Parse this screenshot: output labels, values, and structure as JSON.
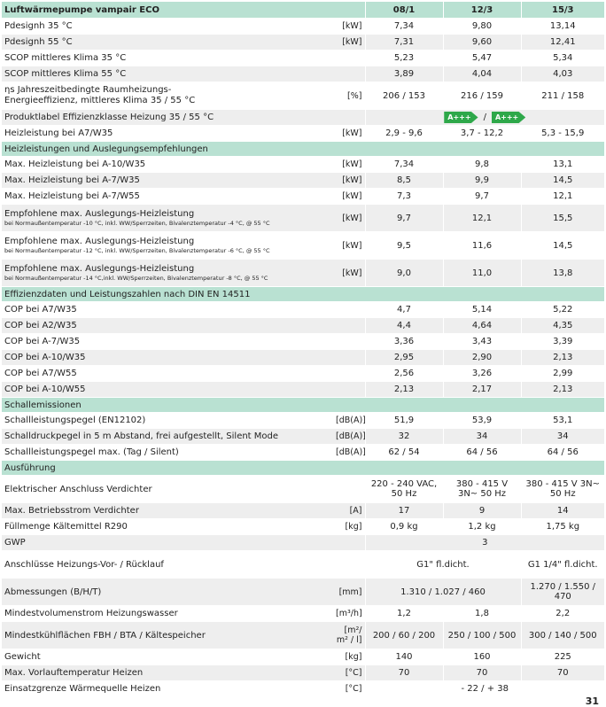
{
  "header": {
    "title": "Luftwärmepumpe vampair ECO",
    "columns": [
      "08/1",
      "12/3",
      "15/3"
    ]
  },
  "sections": [
    {
      "rows": [
        {
          "label": "Pdesignh 35 °C",
          "unit": "[kW]",
          "cells": [
            "7,34",
            "9,80",
            "13,14"
          ]
        },
        {
          "label": "Pdesignh 55 °C",
          "unit": "[kW]",
          "cells": [
            "7,31",
            "9,60",
            "12,41"
          ]
        },
        {
          "label": "SCOP mittleres Klima 35 °C",
          "cells": [
            "5,23",
            "5,47",
            "5,34"
          ]
        },
        {
          "label": "SCOP mittleres Klima 55 °C",
          "cells": [
            "3,89",
            "4,04",
            "4,03"
          ]
        },
        {
          "label": "ηs Jahreszeitbedingte Raumheizungs-",
          "label2": "Energieeffizienz, mittleres Klima 35 / 55 °C",
          "unit": "[%]",
          "cells": [
            "206 / 153",
            "216 / 159",
            "211 / 158"
          ]
        },
        {
          "label": "Produktlabel Effizienzklasse Heizung 35 / 55 °C",
          "badges": [
            "A+++",
            "A+++"
          ],
          "badge_separator": "/"
        },
        {
          "label": "Heizleistung bei A7/W35",
          "unit": "[kW]",
          "cells": [
            "2,9 - 9,6",
            "3,7 - 12,2",
            "5,3 - 15,9"
          ]
        }
      ]
    },
    {
      "title": "Heizleistungen und Auslegungsempfehlungen",
      "rows": [
        {
          "label": "Max. Heizleistung bei A-10/W35",
          "unit": "[kW]",
          "cells": [
            "7,34",
            "9,8",
            "13,1"
          ]
        },
        {
          "label": "Max. Heizleistung bei A-7/W35",
          "unit": "[kW]",
          "cells": [
            "8,5",
            "9,9",
            "14,5"
          ]
        },
        {
          "label": "Max. Heizleistung bei A-7/W55",
          "unit": "[kW]",
          "cells": [
            "7,3",
            "9,7",
            "12,1"
          ]
        },
        {
          "label": "Empfohlene max. Auslegungs-Heizleistung",
          "sublabel": "bei Normaußentemperatur -10 °C, inkl. WW/Sperrzeiten, Bivalenztemperatur -4 °C, @ 55 °C",
          "unit": "[kW]",
          "cells": [
            "9,7",
            "12,1",
            "15,5"
          ]
        },
        {
          "label": "Empfohlene max. Auslegungs-Heizleistung",
          "sublabel": "bei Normaußentemperatur -12 °C, inkl. WW/Sperrzeiten, Bivalenztemperatur -6 °C, @ 55 °C",
          "unit": "[kW]",
          "cells": [
            "9,5",
            "11,6",
            "14,5"
          ]
        },
        {
          "label": "Empfohlene max. Auslegungs-Heizleistung",
          "sublabel": "bei Normaußentemperatur -14 °C,inkl. WW/Sperrzeiten, Bivalenztemperatur -8 °C, @ 55 °C",
          "unit": "[kW]",
          "cells": [
            "9,0",
            "11,0",
            "13,8"
          ]
        }
      ]
    },
    {
      "title": "Effizienzdaten und Leistungszahlen nach DIN EN 14511",
      "rows": [
        {
          "label": "COP bei A7/W35",
          "cells": [
            "4,7",
            "5,14",
            "5,22"
          ]
        },
        {
          "label": "COP bei A2/W35",
          "cells": [
            "4,4",
            "4,64",
            "4,35"
          ]
        },
        {
          "label": "COP bei A-7/W35",
          "cells": [
            "3,36",
            "3,43",
            "3,39"
          ]
        },
        {
          "label": "COP bei A-10/W35",
          "cells": [
            "2,95",
            "2,90",
            "2,13"
          ]
        },
        {
          "label": "COP bei A7/W55",
          "cells": [
            "2,56",
            "3,26",
            "2,99"
          ]
        },
        {
          "label": "COP bei A-10/W55",
          "cells": [
            "2,13",
            "2,17",
            "2,13"
          ]
        }
      ]
    },
    {
      "title": "Schallemissionen",
      "rows": [
        {
          "label": "Schallleistungspegel (EN12102)",
          "unit": "[dB(A)]",
          "cells": [
            "51,9",
            "53,9",
            "53,1"
          ]
        },
        {
          "label": "Schalldruckpegel in 5 m Abstand, frei aufgestellt, Silent Mode",
          "unit": "[dB(A)]",
          "cells": [
            "32",
            "34",
            "34"
          ]
        },
        {
          "label": "Schallleistungspegel max. (Tag / Silent)",
          "unit": "[dB(A)]",
          "cells": [
            "62 / 54",
            "64 / 56",
            "64 / 56"
          ]
        }
      ]
    },
    {
      "title": "Ausführung",
      "rows": [
        {
          "label": "Elektrischer Anschluss Verdichter",
          "cells": [
            "220 - 240 VAC, 50 Hz",
            "380 - 415 V 3N~ 50 Hz",
            "380 - 415 V 3N~ 50 Hz"
          ]
        },
        {
          "label": "Max. Betriebsstrom Verdichter",
          "unit": "[A]",
          "cells": [
            "17",
            "9",
            "14"
          ]
        },
        {
          "label": "Füllmenge Kältemittel R290",
          "unit": "[kg]",
          "cells": [
            "0,9 kg",
            "1,2 kg",
            "1,75 kg"
          ]
        },
        {
          "label": "GWP",
          "cells": [
            "3"
          ]
        },
        {
          "label": "Anschlüsse Heizungs-Vor- / Rücklauf",
          "cells": [
            "G1\" fl.dicht.",
            "G1 1/4\" fl.dicht."
          ]
        },
        {
          "label": "Abmessungen (B/H/T)",
          "unit": "[mm]",
          "cells": [
            "1.310 / 1.027 / 460",
            "1.270 / 1.550 / 470"
          ]
        },
        {
          "label": "Mindestvolumenstrom Heizungswasser",
          "unit": "[m³/h]",
          "cells": [
            "1,2",
            "1,8",
            "2,2"
          ]
        },
        {
          "label": "Mindestkühlflächen FBH / BTA / Kältespeicher",
          "unit": "[m²/ m² / l]",
          "cells": [
            "200 / 60 / 200",
            "250 / 100 / 500",
            "300 / 140 / 500"
          ]
        },
        {
          "label": "Gewicht",
          "unit": "[kg]",
          "cells": [
            "140",
            "160",
            "225"
          ]
        },
        {
          "label": "Max. Vorlauftemperatur Heizen",
          "unit": "[°C]",
          "cells": [
            "70",
            "70",
            "70"
          ]
        },
        {
          "label": "Einsatzgrenze Wärmequelle Heizen",
          "unit": "[°C]",
          "cells": [
            "- 22 / + 38"
          ]
        }
      ]
    }
  ],
  "page_number": "31"
}
